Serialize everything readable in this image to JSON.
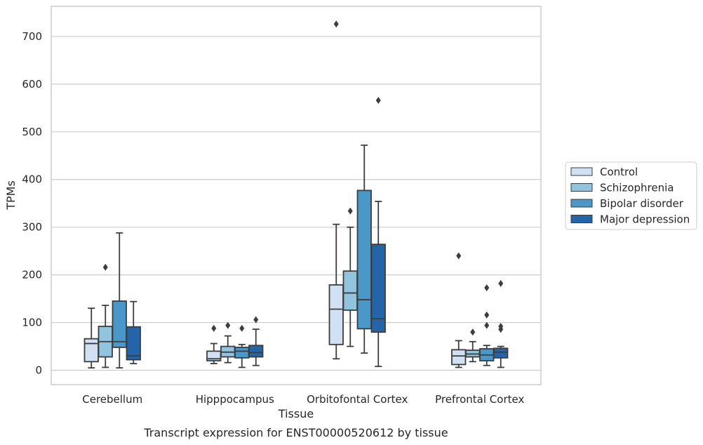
{
  "chart_data": {
    "type": "boxplot",
    "xlabel": "Tissue",
    "ylabel": "TPMs",
    "caption": "Transcript expression for ENST00000520612 by tissue",
    "ylim": [
      -30,
      760
    ],
    "yticks": [
      0,
      100,
      200,
      300,
      400,
      500,
      600,
      700
    ],
    "grid": "horizontal",
    "legend_position": "right",
    "categories": [
      "Cerebellum",
      "Hipppocampus",
      "Orbitofontal Cortex",
      "Prefrontal Cortex"
    ],
    "series": [
      {
        "name": "Control",
        "color": "#cfe1f2",
        "boxes": [
          {
            "whislo": 5,
            "q1": 18,
            "med": 56,
            "q3": 66,
            "whishi": 130,
            "fliers": []
          },
          {
            "whislo": 14,
            "q1": 20,
            "med": 24,
            "q3": 40,
            "whishi": 56,
            "fliers": [
              88
            ]
          },
          {
            "whislo": 24,
            "q1": 54,
            "med": 128,
            "q3": 179,
            "whishi": 306,
            "fliers": [
              726
            ]
          },
          {
            "whislo": 6,
            "q1": 12,
            "med": 30,
            "q3": 43,
            "whishi": 62,
            "fliers": [
              240
            ]
          }
        ]
      },
      {
        "name": "Schizophrenia",
        "color": "#93c4de",
        "boxes": [
          {
            "whislo": 6,
            "q1": 28,
            "med": 60,
            "q3": 92,
            "whishi": 136,
            "fliers": [
              216
            ]
          },
          {
            "whislo": 16,
            "q1": 28,
            "med": 38,
            "q3": 50,
            "whishi": 72,
            "fliers": [
              94
            ]
          },
          {
            "whislo": 50,
            "q1": 126,
            "med": 162,
            "q3": 208,
            "whishi": 300,
            "fliers": [
              334
            ]
          },
          {
            "whislo": 18,
            "q1": 28,
            "med": 34,
            "q3": 42,
            "whishi": 60,
            "fliers": [
              80
            ]
          }
        ]
      },
      {
        "name": "Bipolar disorder",
        "color": "#4a98c9",
        "boxes": [
          {
            "whislo": 5,
            "q1": 48,
            "med": 60,
            "q3": 145,
            "whishi": 288,
            "fliers": []
          },
          {
            "whislo": 6,
            "q1": 26,
            "med": 40,
            "q3": 48,
            "whishi": 54,
            "fliers": [
              88
            ]
          },
          {
            "whislo": 36,
            "q1": 87,
            "med": 148,
            "q3": 377,
            "whishi": 472,
            "fliers": []
          },
          {
            "whislo": 10,
            "q1": 20,
            "med": 32,
            "q3": 45,
            "whishi": 52,
            "fliers": [
              94,
              116,
              173
            ]
          }
        ]
      },
      {
        "name": "Major depression",
        "color": "#2464a8",
        "boxes": [
          {
            "whislo": 14,
            "q1": 22,
            "med": 30,
            "q3": 91,
            "whishi": 144,
            "fliers": []
          },
          {
            "whislo": 10,
            "q1": 28,
            "med": 37,
            "q3": 52,
            "whishi": 86,
            "fliers": [
              106
            ]
          },
          {
            "whislo": 8,
            "q1": 80,
            "med": 108,
            "q3": 264,
            "whishi": 354,
            "fliers": [
              566
            ]
          },
          {
            "whislo": 6,
            "q1": 26,
            "med": 38,
            "q3": 46,
            "whishi": 50,
            "fliers": [
              86,
              92,
              182
            ]
          }
        ]
      }
    ]
  }
}
